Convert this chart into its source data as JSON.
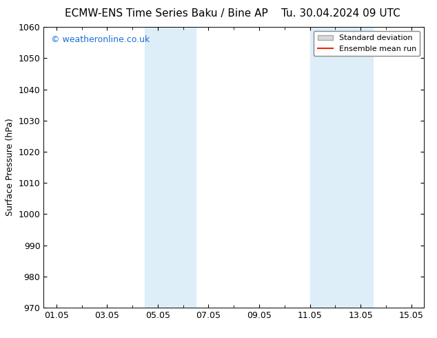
{
  "title_left": "ECMW-ENS Time Series Baku / Bine AP",
  "title_right": "Tu. 30.04.2024 09 UTC",
  "ylabel": "Surface Pressure (hPa)",
  "ylim": [
    970,
    1060
  ],
  "yticks": [
    970,
    980,
    990,
    1000,
    1010,
    1020,
    1030,
    1040,
    1050,
    1060
  ],
  "xtick_labels": [
    "01.05",
    "03.05",
    "05.05",
    "07.05",
    "09.05",
    "11.05",
    "13.05",
    "15.05"
  ],
  "xtick_positions": [
    0,
    2,
    4,
    6,
    8,
    10,
    12,
    14
  ],
  "xlim": [
    -0.5,
    14.5
  ],
  "shaded_regions": [
    {
      "x_start": 3.5,
      "x_end": 5.5,
      "color": "#ddeef9"
    },
    {
      "x_start": 10.0,
      "x_end": 12.5,
      "color": "#ddeef9"
    }
  ],
  "watermark_text": "© weatheronline.co.uk",
  "watermark_color": "#1a6fd4",
  "background_color": "#ffffff",
  "legend_std_color": "#d8d8d8",
  "legend_std_edge": "#aaaaaa",
  "legend_mean_color": "#ff2200",
  "title_fontsize": 11,
  "axis_label_fontsize": 9,
  "tick_fontsize": 9,
  "watermark_fontsize": 9
}
